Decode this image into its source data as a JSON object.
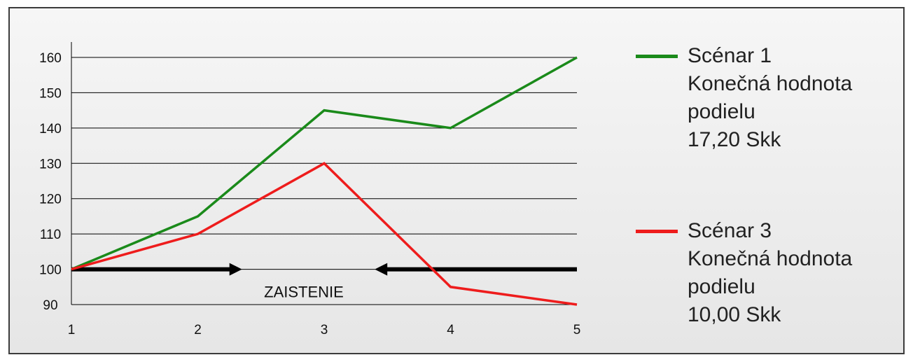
{
  "chart_data": {
    "type": "line",
    "x": [
      1,
      2,
      3,
      4,
      5
    ],
    "xlim": [
      1,
      5
    ],
    "ylim": [
      90,
      160
    ],
    "x_ticks": [
      "1",
      "2",
      "3",
      "4",
      "5"
    ],
    "y_ticks": [
      "90",
      "100",
      "110",
      "120",
      "130",
      "140",
      "150",
      "160"
    ],
    "grid": true,
    "legend_position": "right",
    "series": [
      {
        "name": "Scénar 1",
        "color": "#1a8a1a",
        "values": [
          100,
          115,
          145,
          140,
          160
        ],
        "legend_lines": [
          "Scénar 1",
          "Konečná hodnota",
          "podielu",
          "17,20 Skk"
        ]
      },
      {
        "name": "Scénar 3",
        "color": "#ee1c1c",
        "values": [
          100,
          110,
          130,
          95,
          90
        ],
        "legend_lines": [
          "Scénar 3",
          "Konečná hodnota",
          "podielu",
          "10,00 Skk"
        ]
      }
    ],
    "annotation": {
      "label": "ZAISTENIE",
      "arrow_left_range": [
        1,
        2.35
      ],
      "arrow_right_range": [
        3.4,
        5
      ],
      "y": 100
    }
  }
}
